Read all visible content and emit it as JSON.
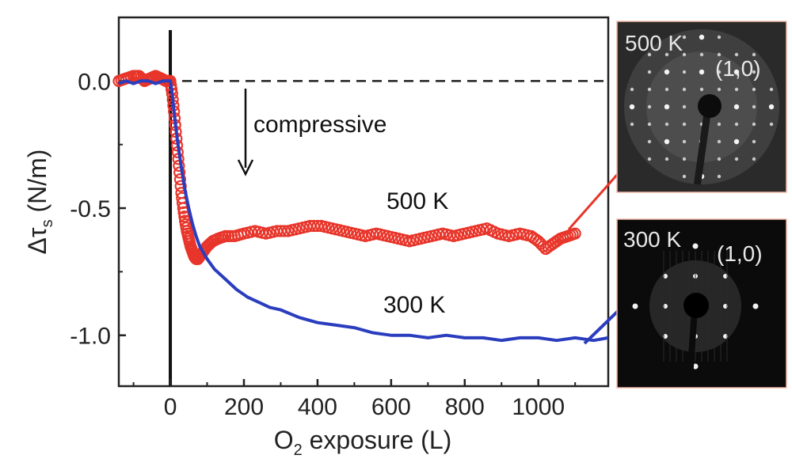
{
  "chart_data": {
    "type": "scatter",
    "xlabel": "O",
    "xlabel_sub": "2",
    "xlabel_rest": " exposure (L)",
    "ylabel": "Δτ",
    "ylabel_sub": "s",
    "ylabel_rest": " (N/m)",
    "xlim": [
      -140,
      1190
    ],
    "ylim": [
      -1.2,
      0.25
    ],
    "x_ticks": [
      0,
      200,
      400,
      600,
      800,
      1000
    ],
    "x_tick_labels": [
      "0",
      "200",
      "400",
      "600",
      "800",
      "1000"
    ],
    "y_ticks": [
      0.0,
      -0.5,
      -1.0
    ],
    "y_tick_labels": [
      "0.0",
      "-0.5",
      "-1.0"
    ],
    "reference_lines": {
      "y_dashed": 0.0,
      "x_solid": 0
    },
    "annotations": {
      "compressive": "compressive",
      "label_500": "500 K",
      "label_300": "300 K"
    },
    "series": [
      {
        "name": "500 K",
        "color": "#e8352a",
        "marker": "open-circle",
        "x": [
          -140,
          -120,
          -100,
          -85,
          -70,
          -55,
          -40,
          -25,
          -12,
          0,
          5,
          10,
          15,
          20,
          25,
          30,
          35,
          40,
          45,
          50,
          55,
          60,
          65,
          70,
          75,
          80,
          90,
          100,
          115,
          130,
          150,
          175,
          200,
          230,
          260,
          290,
          320,
          350,
          380,
          410,
          440,
          470,
          500,
          530,
          560,
          590,
          620,
          650,
          680,
          710,
          740,
          770,
          800,
          830,
          860,
          890,
          920,
          950,
          980,
          1000,
          1020,
          1040,
          1060,
          1080,
          1100
        ],
        "values": [
          0.0,
          0.01,
          0.02,
          0.02,
          0.0,
          0.01,
          0.02,
          0.01,
          0.0,
          0.0,
          -0.05,
          -0.12,
          -0.2,
          -0.28,
          -0.36,
          -0.44,
          -0.5,
          -0.55,
          -0.59,
          -0.62,
          -0.65,
          -0.67,
          -0.69,
          -0.7,
          -0.7,
          -0.69,
          -0.67,
          -0.65,
          -0.63,
          -0.62,
          -0.61,
          -0.61,
          -0.6,
          -0.59,
          -0.6,
          -0.59,
          -0.59,
          -0.58,
          -0.57,
          -0.57,
          -0.58,
          -0.59,
          -0.6,
          -0.61,
          -0.6,
          -0.61,
          -0.62,
          -0.63,
          -0.62,
          -0.61,
          -0.6,
          -0.61,
          -0.6,
          -0.59,
          -0.58,
          -0.6,
          -0.61,
          -0.6,
          -0.61,
          -0.63,
          -0.66,
          -0.64,
          -0.62,
          -0.61,
          -0.6
        ]
      },
      {
        "name": "300 K",
        "color": "#2b3dbf",
        "marker": "line",
        "x": [
          -140,
          -120,
          -100,
          -80,
          -60,
          -40,
          -20,
          0,
          5,
          10,
          20,
          30,
          40,
          50,
          60,
          70,
          80,
          100,
          120,
          150,
          180,
          210,
          240,
          270,
          300,
          350,
          400,
          450,
          500,
          550,
          600,
          650,
          700,
          750,
          800,
          850,
          900,
          950,
          1000,
          1050,
          1100,
          1150,
          1190
        ],
        "values": [
          -0.01,
          0.0,
          -0.01,
          0.0,
          0.0,
          -0.01,
          0.0,
          0.0,
          -0.05,
          -0.12,
          -0.24,
          -0.34,
          -0.43,
          -0.5,
          -0.56,
          -0.61,
          -0.65,
          -0.7,
          -0.74,
          -0.78,
          -0.82,
          -0.85,
          -0.87,
          -0.89,
          -0.9,
          -0.93,
          -0.95,
          -0.96,
          -0.97,
          -0.99,
          -1.0,
          -1.0,
          -1.01,
          -1.0,
          -1.01,
          -1.01,
          -1.02,
          -1.01,
          -1.01,
          -1.02,
          -1.01,
          -1.02,
          -1.01
        ]
      }
    ]
  },
  "insets": {
    "top_temperature": "500 K",
    "top_index": "(1,0)",
    "bottom_temperature": "300 K",
    "bottom_index": "(1,0)"
  }
}
